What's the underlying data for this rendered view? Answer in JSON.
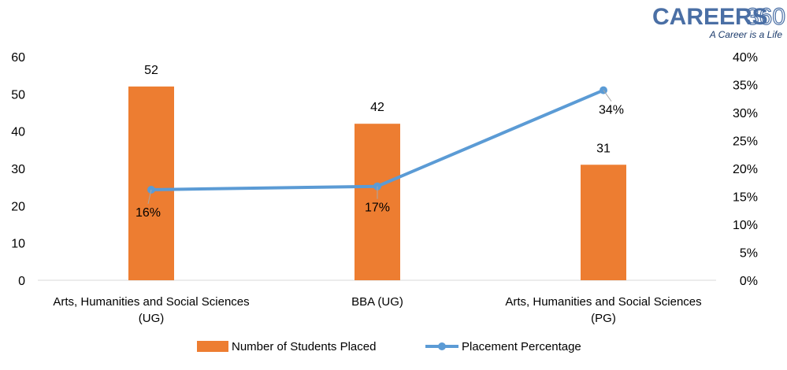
{
  "logo": {
    "brand": "CAREERS",
    "number": "360",
    "tagline": "A Career is a Life"
  },
  "chart_data": {
    "type": "bar",
    "categories": [
      [
        "Arts, Humanities and Social Sciences",
        "(UG)"
      ],
      [
        "BBA (UG)"
      ],
      [
        "Arts, Humanities and Social Sciences",
        "(PG)"
      ]
    ],
    "series": [
      {
        "name": "Number of Students Placed",
        "type": "bar",
        "axis": "left",
        "color": "#ed7d31",
        "values": [
          52,
          42,
          31
        ],
        "labels": [
          "52",
          "42",
          "31"
        ]
      },
      {
        "name": "Placement Percentage",
        "type": "line",
        "axis": "right",
        "color": "#5b9bd5",
        "values": [
          16.2,
          16.8,
          34
        ],
        "labels": [
          "16%",
          "17%",
          "34%"
        ]
      }
    ],
    "y_left": {
      "min": 0,
      "max": 60,
      "ticks": [
        "0",
        "10",
        "20",
        "30",
        "40",
        "50",
        "60"
      ]
    },
    "y_right": {
      "min": 0,
      "max": 40,
      "ticks": [
        "0%",
        "5%",
        "10%",
        "15%",
        "20%",
        "25%",
        "30%",
        "35%",
        "40%"
      ]
    },
    "grid": false,
    "legend_position": "bottom"
  }
}
